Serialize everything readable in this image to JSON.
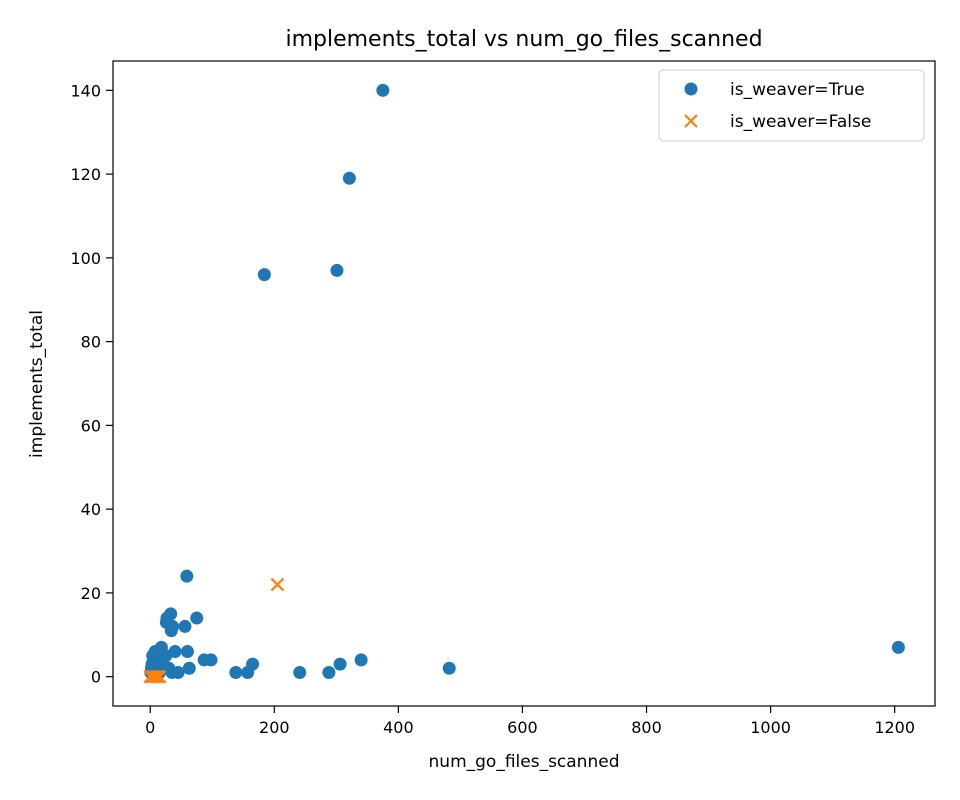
{
  "chart_data": {
    "type": "scatter",
    "title": "implements_total vs num_go_files_scanned",
    "xlabel": "num_go_files_scanned",
    "ylabel": "implements_total",
    "xlim": [
      -60,
      1265
    ],
    "ylim": [
      -7,
      147
    ],
    "xticks": [
      0,
      200,
      400,
      600,
      800,
      1000,
      1200
    ],
    "yticks": [
      0,
      20,
      40,
      60,
      80,
      100,
      120,
      140
    ],
    "grid": false,
    "legend": "top-right",
    "series": [
      {
        "name": "is_weaver=True",
        "marker": "circle",
        "color": "#1f77b4",
        "points": [
          [
            375,
            140
          ],
          [
            321,
            119
          ],
          [
            301,
            97
          ],
          [
            184,
            96
          ],
          [
            59,
            24
          ],
          [
            27,
            14
          ],
          [
            33,
            15
          ],
          [
            75,
            14
          ],
          [
            26,
            13
          ],
          [
            36,
            12
          ],
          [
            56,
            12
          ],
          [
            34,
            11
          ],
          [
            18,
            7
          ],
          [
            1206,
            7
          ],
          [
            40,
            6
          ],
          [
            60,
            6
          ],
          [
            8,
            6
          ],
          [
            4,
            5
          ],
          [
            12,
            5
          ],
          [
            20,
            5
          ],
          [
            25,
            5
          ],
          [
            87,
            4
          ],
          [
            98,
            4
          ],
          [
            340,
            4
          ],
          [
            3,
            3
          ],
          [
            8,
            3
          ],
          [
            15,
            3
          ],
          [
            20,
            3
          ],
          [
            165,
            3
          ],
          [
            306,
            3
          ],
          [
            2,
            2
          ],
          [
            10,
            2
          ],
          [
            30,
            2
          ],
          [
            63,
            2
          ],
          [
            482,
            2
          ],
          [
            35,
            1
          ],
          [
            45,
            1
          ],
          [
            138,
            1
          ],
          [
            157,
            1
          ],
          [
            241,
            1
          ],
          [
            288,
            1
          ],
          [
            1,
            1
          ],
          [
            5,
            1
          ],
          [
            15,
            1
          ]
        ]
      },
      {
        "name": "is_weaver=False",
        "marker": "x",
        "color": "#ff7f0e",
        "points": [
          [
            205,
            22
          ],
          [
            0,
            0
          ],
          [
            3,
            0
          ],
          [
            6,
            0
          ],
          [
            9,
            0
          ],
          [
            12,
            0
          ],
          [
            15,
            0
          ]
        ]
      }
    ]
  }
}
